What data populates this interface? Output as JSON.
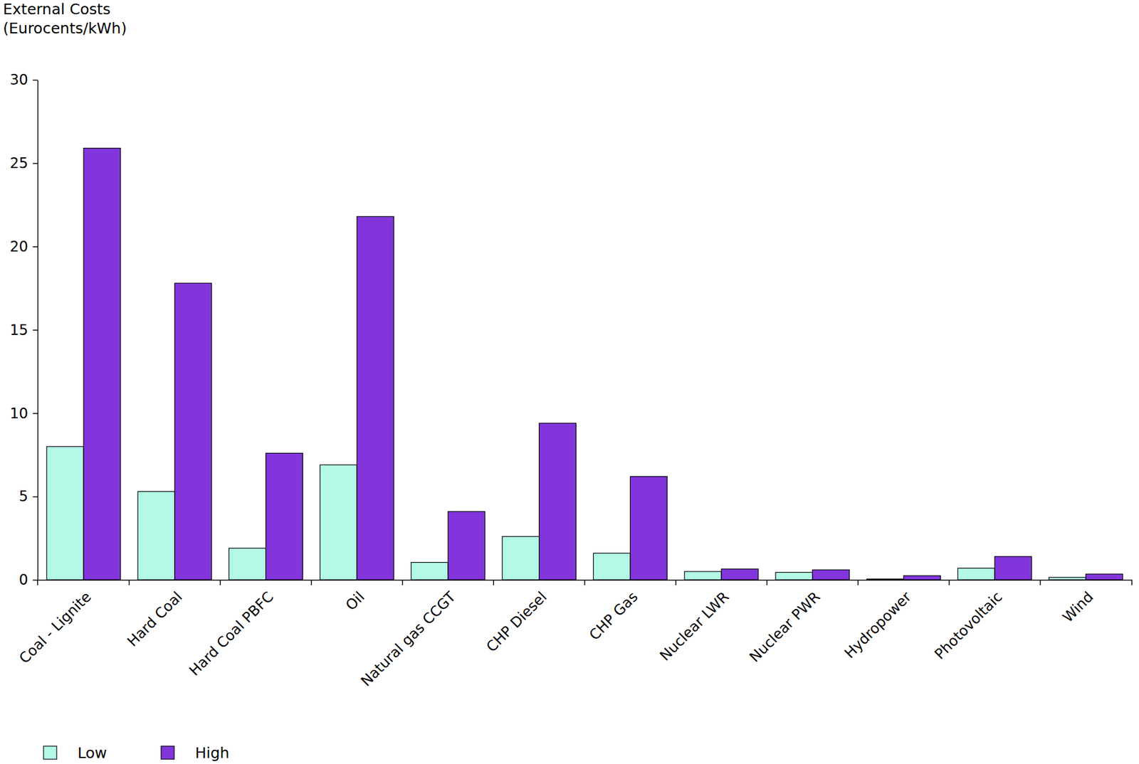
{
  "chart_data": {
    "type": "bar",
    "y_label": "External Costs\n(Eurocents/kWh)",
    "categories": [
      "Coal - Lignite",
      "Hard Coal",
      "Hard Coal PBFC",
      "Oil",
      "Natural gas CCGT",
      "CHP Diesel",
      "CHP Gas",
      "Nuclear LWR",
      "Nuclear PWR",
      "Hydropower",
      "Photovoltaic",
      "Wind"
    ],
    "series": [
      {
        "name": "Low",
        "color": "#b4f8e6",
        "values": [
          8.0,
          5.3,
          1.9,
          6.9,
          1.05,
          2.6,
          1.6,
          0.5,
          0.45,
          0.05,
          0.7,
          0.15
        ]
      },
      {
        "name": "High",
        "color": "#8135db",
        "values": [
          25.9,
          17.8,
          7.6,
          21.8,
          4.1,
          9.4,
          6.2,
          0.65,
          0.6,
          0.25,
          1.4,
          0.35
        ]
      }
    ],
    "ylim": [
      0,
      30
    ],
    "yticks": [
      0,
      5,
      10,
      15,
      20,
      25,
      30
    ],
    "grid": false,
    "legend": "bottom-left"
  }
}
